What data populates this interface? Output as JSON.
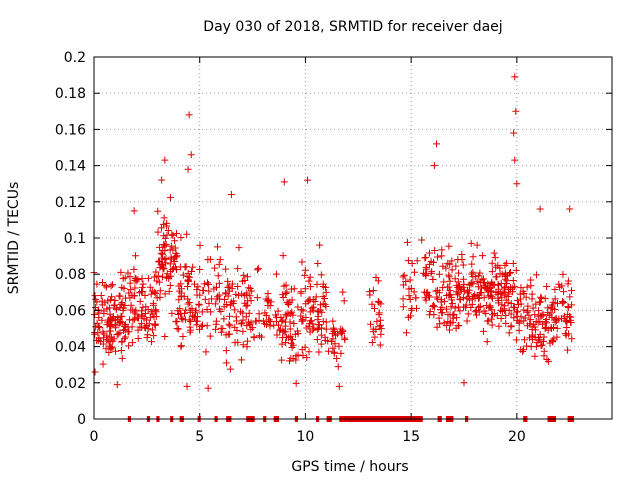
{
  "chart_data": {
    "type": "scatter",
    "title": "Day 030 of 2018, SRMTID for receiver daej",
    "xlabel": "GPS time / hours",
    "ylabel": "SRMTID / TECUs",
    "xlim": [
      0,
      24.5
    ],
    "ylim": [
      0,
      0.2
    ],
    "x_ticks": [
      0,
      5,
      10,
      15,
      20
    ],
    "y_ticks": [
      0,
      0.02,
      0.04,
      0.06,
      0.08,
      0.1,
      0.12,
      0.14,
      0.16,
      0.18,
      0.2
    ],
    "x_tick_labels": [
      "0",
      "5",
      "10",
      "15",
      "20"
    ],
    "y_tick_labels": [
      "0",
      "0.02",
      "0.04",
      "0.06",
      "0.08",
      "0.1",
      "0.12",
      "0.14",
      "0.16",
      "0.18",
      "0.2"
    ],
    "grid": true,
    "marker": "+",
    "color": "#e00000",
    "series": [
      {
        "name": "SRMTID",
        "clusters": [
          {
            "t0": 0.0,
            "t1": 1.5,
            "center": 0.055,
            "spread": 0.02,
            "count": 120
          },
          {
            "t0": 1.6,
            "t1": 3.0,
            "center": 0.062,
            "spread": 0.022,
            "count": 90
          },
          {
            "t0": 3.0,
            "t1": 3.9,
            "center": 0.085,
            "spread": 0.03,
            "count": 70
          },
          {
            "t0": 3.9,
            "t1": 6.0,
            "center": 0.065,
            "spread": 0.025,
            "count": 110
          },
          {
            "t0": 6.0,
            "t1": 8.0,
            "center": 0.06,
            "spread": 0.025,
            "count": 90
          },
          {
            "t0": 8.0,
            "t1": 8.8,
            "center": 0.055,
            "spread": 0.015,
            "count": 25
          },
          {
            "t0": 8.8,
            "t1": 10.0,
            "center": 0.055,
            "spread": 0.025,
            "count": 70
          },
          {
            "t0": 10.0,
            "t1": 11.0,
            "center": 0.058,
            "spread": 0.022,
            "count": 60
          },
          {
            "t0": 11.0,
            "t1": 11.9,
            "center": 0.048,
            "spread": 0.015,
            "count": 30
          },
          {
            "t0": 13.0,
            "t1": 13.6,
            "center": 0.06,
            "spread": 0.018,
            "count": 25
          },
          {
            "t0": 14.6,
            "t1": 15.3,
            "center": 0.07,
            "spread": 0.022,
            "count": 25
          },
          {
            "t0": 15.5,
            "t1": 16.6,
            "center": 0.075,
            "spread": 0.025,
            "count": 55
          },
          {
            "t0": 16.6,
            "t1": 18.0,
            "center": 0.07,
            "spread": 0.02,
            "count": 90
          },
          {
            "t0": 18.0,
            "t1": 20.0,
            "center": 0.07,
            "spread": 0.022,
            "count": 140
          },
          {
            "t0": 20.0,
            "t1": 21.5,
            "center": 0.055,
            "spread": 0.02,
            "count": 90
          },
          {
            "t0": 21.5,
            "t1": 22.6,
            "center": 0.055,
            "spread": 0.02,
            "count": 60
          }
        ],
        "peaks": [
          {
            "x": 3.35,
            "y": 0.143
          },
          {
            "x": 3.2,
            "y": 0.132
          },
          {
            "x": 4.5,
            "y": 0.168
          },
          {
            "x": 4.6,
            "y": 0.146
          },
          {
            "x": 4.45,
            "y": 0.138
          },
          {
            "x": 6.5,
            "y": 0.124
          },
          {
            "x": 9.0,
            "y": 0.131
          },
          {
            "x": 10.1,
            "y": 0.132
          },
          {
            "x": 16.2,
            "y": 0.152
          },
          {
            "x": 16.1,
            "y": 0.14
          },
          {
            "x": 19.9,
            "y": 0.189
          },
          {
            "x": 19.95,
            "y": 0.17
          },
          {
            "x": 19.85,
            "y": 0.158
          },
          {
            "x": 19.9,
            "y": 0.143
          },
          {
            "x": 20.0,
            "y": 0.13
          },
          {
            "x": 21.1,
            "y": 0.116
          },
          {
            "x": 22.5,
            "y": 0.116
          },
          {
            "x": 1.9,
            "y": 0.115
          },
          {
            "x": 11.6,
            "y": 0.018
          },
          {
            "x": 1.1,
            "y": 0.019
          },
          {
            "x": 4.4,
            "y": 0.018
          },
          {
            "x": 5.4,
            "y": 0.017
          },
          {
            "x": 17.5,
            "y": 0.02
          },
          {
            "x": 0.05,
            "y": 0.026
          }
        ]
      }
    ],
    "gap_markers_y": 0,
    "gaps": [
      [
        1.6,
        1.75
      ],
      [
        2.5,
        2.65
      ],
      [
        2.95,
        3.1
      ],
      [
        3.6,
        3.75
      ],
      [
        4.05,
        4.25
      ],
      [
        4.9,
        5.05
      ],
      [
        5.7,
        5.85
      ],
      [
        6.25,
        6.5
      ],
      [
        7.2,
        7.6
      ],
      [
        8.0,
        8.15
      ],
      [
        8.5,
        8.75
      ],
      [
        9.5,
        9.65
      ],
      [
        10.5,
        10.65
      ],
      [
        11.0,
        11.25
      ],
      [
        11.6,
        15.55
      ],
      [
        16.25,
        16.45
      ],
      [
        16.65,
        17.0
      ],
      [
        17.55,
        17.7
      ],
      [
        20.3,
        20.5
      ],
      [
        21.45,
        21.85
      ],
      [
        22.4,
        22.7
      ]
    ]
  }
}
